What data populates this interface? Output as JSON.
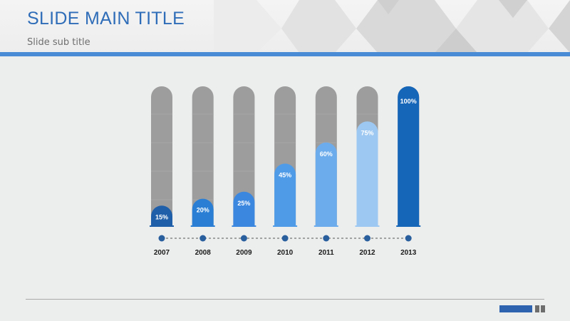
{
  "slide": {
    "title": "SLIDE MAIN TITLE",
    "subtitle": "Slide sub title"
  },
  "colors": {
    "title": "#2f6db8",
    "track": "#9d9d9d",
    "rule": "#4a8bd6",
    "dot": "#2a5f9e"
  },
  "chart_data": {
    "type": "bar",
    "categories": [
      "2007",
      "2008",
      "2009",
      "2010",
      "2011",
      "2012",
      "2013"
    ],
    "values": [
      15,
      20,
      25,
      45,
      60,
      75,
      100
    ],
    "labels": [
      "15%",
      "20%",
      "25%",
      "45%",
      "60%",
      "75%",
      "100%"
    ],
    "bar_colors": [
      "#1f5faa",
      "#2a7fd4",
      "#3b87e0",
      "#4f9be8",
      "#6cacec",
      "#9dc8f1",
      "#1565b8"
    ],
    "title": "",
    "xlabel": "",
    "ylabel": "",
    "ylim": [
      0,
      100
    ],
    "grid": false,
    "legend": "none"
  }
}
